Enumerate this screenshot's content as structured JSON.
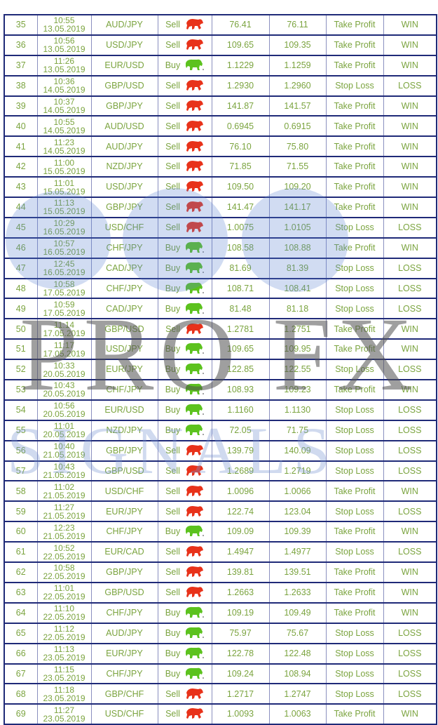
{
  "watermark": {
    "line1": "PRO FX",
    "line2": "SIGNALS"
  },
  "colors": {
    "text": "#7ba43f",
    "border": "#1f2a78",
    "sell_icon": "#e8321a",
    "buy_icon": "#5cc21e"
  },
  "rows": [
    {
      "n": "35",
      "time": "10:55",
      "date": "13.05.2019",
      "pair": "AUD/JPY",
      "dir": "Sell",
      "icon": "bear-icon",
      "entry": "76.41",
      "exit": "76.11",
      "type": "Take Profit",
      "result": "WIN"
    },
    {
      "n": "36",
      "time": "10:56",
      "date": "13.05.2019",
      "pair": "USD/JPY",
      "dir": "Sell",
      "icon": "bear-icon",
      "entry": "109.65",
      "exit": "109.35",
      "type": "Take Profit",
      "result": "WIN"
    },
    {
      "n": "37",
      "time": "11:26",
      "date": "13.05.2019",
      "pair": "EUR/USD",
      "dir": "Buy",
      "icon": "bull-icon",
      "entry": "1.1229",
      "exit": "1.1259",
      "type": "Take Profit",
      "result": "WIN"
    },
    {
      "n": "38",
      "time": "10:36",
      "date": "14.05.2019",
      "pair": "GBP/USD",
      "dir": "Sell",
      "icon": "bear-icon",
      "entry": "1.2930",
      "exit": "1.2960",
      "type": "Stop Loss",
      "result": "LOSS"
    },
    {
      "n": "39",
      "time": "10:37",
      "date": "14.05.2019",
      "pair": "GBP/JPY",
      "dir": "Sell",
      "icon": "bear-icon",
      "entry": "141.87",
      "exit": "141.57",
      "type": "Take Profit",
      "result": "WIN"
    },
    {
      "n": "40",
      "time": "10:55",
      "date": "14.05.2019",
      "pair": "AUD/USD",
      "dir": "Sell",
      "icon": "bear-icon",
      "entry": "0.6945",
      "exit": "0.6915",
      "type": "Take Profit",
      "result": "WIN"
    },
    {
      "n": "41",
      "time": "11:23",
      "date": "14.05.2019",
      "pair": "AUD/JPY",
      "dir": "Sell",
      "icon": "bear-icon",
      "entry": "76.10",
      "exit": "75.80",
      "type": "Take Profit",
      "result": "WIN"
    },
    {
      "n": "42",
      "time": "11:00",
      "date": "15.05.2019",
      "pair": "NZD/JPY",
      "dir": "Sell",
      "icon": "bear-icon",
      "entry": "71.85",
      "exit": "71.55",
      "type": "Take Profit",
      "result": "WIN"
    },
    {
      "n": "43",
      "time": "11:01",
      "date": "15.05.2019",
      "pair": "USD/JPY",
      "dir": "Sell",
      "icon": "bear-icon",
      "entry": "109.50",
      "exit": "109.20",
      "type": "Take Profit",
      "result": "WIN"
    },
    {
      "n": "44",
      "time": "11:13",
      "date": "15.05.2019",
      "pair": "GBP/JPY",
      "dir": "Sell",
      "icon": "bear-icon",
      "entry": "141.47",
      "exit": "141.17",
      "type": "Take Profit",
      "result": "WIN"
    },
    {
      "n": "45",
      "time": "10:29",
      "date": "16.05.2019",
      "pair": "USD/CHF",
      "dir": "Sell",
      "icon": "bear-icon",
      "entry": "1.0075",
      "exit": "1.0105",
      "type": "Stop Loss",
      "result": "LOSS"
    },
    {
      "n": "46",
      "time": "10:57",
      "date": "16.05.2019",
      "pair": "CHF/JPY",
      "dir": "Buy",
      "icon": "bull-icon",
      "entry": "108.58",
      "exit": "108.88",
      "type": "Take Profit",
      "result": "WIN"
    },
    {
      "n": "47",
      "time": "12:45",
      "date": "16.05.2019",
      "pair": "CAD/JPY",
      "dir": "Buy",
      "icon": "bull-icon",
      "entry": "81.69",
      "exit": "81.39",
      "type": "Stop Loss",
      "result": "LOSS"
    },
    {
      "n": "48",
      "time": "10:58",
      "date": "17.05.2019",
      "pair": "CHF/JPY",
      "dir": "Buy",
      "icon": "bull-icon",
      "entry": "108.71",
      "exit": "108.41",
      "type": "Stop Loss",
      "result": "LOSS"
    },
    {
      "n": "49",
      "time": "10:59",
      "date": "17.05.2019",
      "pair": "CAD/JPY",
      "dir": "Buy",
      "icon": "bull-icon",
      "entry": "81.48",
      "exit": "81.18",
      "type": "Stop Loss",
      "result": "LOSS"
    },
    {
      "n": "50",
      "time": "11:14",
      "date": "17.05.2019",
      "pair": "GBP/USD",
      "dir": "Sell",
      "icon": "bear-icon",
      "entry": "1.2781",
      "exit": "1.2751",
      "type": "Take Profit",
      "result": "WIN"
    },
    {
      "n": "51",
      "time": "11:17",
      "date": "17.05.2019",
      "pair": "USD/JPY",
      "dir": "Buy",
      "icon": "bull-icon",
      "entry": "109.65",
      "exit": "109.95",
      "type": "Take Profit",
      "result": "WIN"
    },
    {
      "n": "52",
      "time": "10:33",
      "date": "20.05.2019",
      "pair": "EUR/JPY",
      "dir": "Buy",
      "icon": "bull-icon",
      "entry": "122.85",
      "exit": "122.55",
      "type": "Stop Loss",
      "result": "LOSS"
    },
    {
      "n": "53",
      "time": "10:43",
      "date": "20.05.2019",
      "pair": "CHF/JPY",
      "dir": "Buy",
      "icon": "bull-icon",
      "entry": "108.93",
      "exit": "109.23",
      "type": "Take Profit",
      "result": "WIN"
    },
    {
      "n": "54",
      "time": "10:56",
      "date": "20.05.2019",
      "pair": "EUR/USD",
      "dir": "Buy",
      "icon": "bull-icon",
      "entry": "1.1160",
      "exit": "1.1130",
      "type": "Stop Loss",
      "result": "LOSS"
    },
    {
      "n": "55",
      "time": "11:01",
      "date": "20.05.2019",
      "pair": "NZD/JPY",
      "dir": "Buy",
      "icon": "bull-icon",
      "entry": "72.05",
      "exit": "71.75",
      "type": "Stop Loss",
      "result": "LOSS"
    },
    {
      "n": "56",
      "time": "10:40",
      "date": "21.05.2019",
      "pair": "GBP/JPY",
      "dir": "Sell",
      "icon": "bear-icon",
      "entry": "139.79",
      "exit": "140.09",
      "type": "Stop Loss",
      "result": "LOSS"
    },
    {
      "n": "57",
      "time": "10:43",
      "date": "21.05.2019",
      "pair": "GBP/USD",
      "dir": "Sell",
      "icon": "bear-icon",
      "entry": "1.2689",
      "exit": "1.2719",
      "type": "Stop Loss",
      "result": "LOSS"
    },
    {
      "n": "58",
      "time": "11:02",
      "date": "21.05.2019",
      "pair": "USD/CHF",
      "dir": "Sell",
      "icon": "bear-icon",
      "entry": "1.0096",
      "exit": "1.0066",
      "type": "Take Profit",
      "result": "WIN"
    },
    {
      "n": "59",
      "time": "11:27",
      "date": "21.05.2019",
      "pair": "EUR/JPY",
      "dir": "Sell",
      "icon": "bear-icon",
      "entry": "122.74",
      "exit": "123.04",
      "type": "Stop Loss",
      "result": "LOSS"
    },
    {
      "n": "60",
      "time": "12:23",
      "date": "21.05.2019",
      "pair": "CHF/JPY",
      "dir": "Buy",
      "icon": "bull-icon",
      "entry": "109.09",
      "exit": "109.39",
      "type": "Take Profit",
      "result": "WIN"
    },
    {
      "n": "61",
      "time": "10:52",
      "date": "22.05.2019",
      "pair": "EUR/CAD",
      "dir": "Sell",
      "icon": "bear-icon",
      "entry": "1.4947",
      "exit": "1.4977",
      "type": "Stop Loss",
      "result": "LOSS"
    },
    {
      "n": "62",
      "time": "10:58",
      "date": "22.05.2019",
      "pair": "GBP/JPY",
      "dir": "Sell",
      "icon": "bear-icon",
      "entry": "139.81",
      "exit": "139.51",
      "type": "Take Profit",
      "result": "WIN"
    },
    {
      "n": "63",
      "time": "11:01",
      "date": "22.05.2019",
      "pair": "GBP/USD",
      "dir": "Sell",
      "icon": "bear-icon",
      "entry": "1.2663",
      "exit": "1.2633",
      "type": "Take Profit",
      "result": "WIN"
    },
    {
      "n": "64",
      "time": "11:10",
      "date": "22.05.2019",
      "pair": "CHF/JPY",
      "dir": "Buy",
      "icon": "bull-icon",
      "entry": "109.19",
      "exit": "109.49",
      "type": "Take Profit",
      "result": "WIN"
    },
    {
      "n": "65",
      "time": "11:12",
      "date": "22.05.2019",
      "pair": "AUD/JPY",
      "dir": "Buy",
      "icon": "bull-icon",
      "entry": "75.97",
      "exit": "75.67",
      "type": "Stop Loss",
      "result": "LOSS"
    },
    {
      "n": "66",
      "time": "11:13",
      "date": "23.05.2019",
      "pair": "EUR/JPY",
      "dir": "Buy",
      "icon": "bull-icon",
      "entry": "122.78",
      "exit": "122.48",
      "type": "Stop Loss",
      "result": "LOSS"
    },
    {
      "n": "67",
      "time": "11:15",
      "date": "23.05.2019",
      "pair": "CHF/JPY",
      "dir": "Buy",
      "icon": "bull-icon",
      "entry": "109.24",
      "exit": "108.94",
      "type": "Stop Loss",
      "result": "LOSS"
    },
    {
      "n": "68",
      "time": "11:18",
      "date": "23.05.2019",
      "pair": "GBP/CHF",
      "dir": "Sell",
      "icon": "bear-icon",
      "entry": "1.2717",
      "exit": "1.2747",
      "type": "Stop Loss",
      "result": "LOSS"
    },
    {
      "n": "69",
      "time": "11:27",
      "date": "23.05.2019",
      "pair": "USD/CHF",
      "dir": "Sell",
      "icon": "bear-icon",
      "entry": "1.0093",
      "exit": "1.0063",
      "type": "Take Profit",
      "result": "WIN"
    }
  ]
}
